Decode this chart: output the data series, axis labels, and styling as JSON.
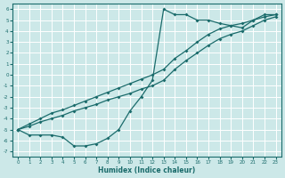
{
  "xlabel": "Humidex (Indice chaleur)",
  "bg_color": "#cce8e8",
  "grid_color": "#ffffff",
  "line_color": "#1a6b6b",
  "xlim": [
    -0.5,
    23.5
  ],
  "ylim": [
    -7.5,
    6.5
  ],
  "xticks": [
    0,
    1,
    2,
    3,
    4,
    5,
    6,
    7,
    8,
    9,
    10,
    11,
    12,
    13,
    14,
    15,
    16,
    17,
    18,
    19,
    20,
    21,
    22,
    23
  ],
  "yticks": [
    -7,
    -6,
    -5,
    -4,
    -3,
    -2,
    -1,
    0,
    1,
    2,
    3,
    4,
    5,
    6
  ],
  "line1_x": [
    0,
    1,
    2,
    3,
    4,
    5,
    6,
    7,
    8,
    9,
    10,
    11,
    12,
    13,
    14,
    15,
    16,
    17,
    18,
    19,
    20,
    21,
    22,
    23
  ],
  "line1_y": [
    -5.0,
    -5.5,
    -5.5,
    -5.5,
    -5.7,
    -6.5,
    -6.5,
    -6.3,
    -5.8,
    -5.0,
    -3.3,
    -2.0,
    -0.5,
    6.0,
    5.5,
    5.5,
    5.0,
    5.0,
    4.7,
    4.5,
    4.3,
    5.0,
    5.5,
    5.5
  ],
  "line2_x": [
    0,
    1,
    2,
    3,
    4,
    5,
    6,
    7,
    8,
    9,
    10,
    11,
    12,
    13,
    14,
    15,
    16,
    17,
    18,
    19,
    20,
    21,
    22,
    23
  ],
  "line2_y": [
    -5.0,
    -4.7,
    -4.3,
    -4.0,
    -3.7,
    -3.3,
    -3.0,
    -2.7,
    -2.3,
    -2.0,
    -1.7,
    -1.3,
    -1.0,
    -0.5,
    0.5,
    1.3,
    2.0,
    2.7,
    3.3,
    3.7,
    4.0,
    4.5,
    5.0,
    5.3
  ],
  "line3_x": [
    0,
    1,
    2,
    3,
    4,
    5,
    6,
    7,
    8,
    9,
    10,
    11,
    12,
    13,
    14,
    15,
    16,
    17,
    18,
    19,
    20,
    21,
    22,
    23
  ],
  "line3_y": [
    -5.0,
    -4.5,
    -4.0,
    -3.5,
    -3.2,
    -2.8,
    -2.4,
    -2.0,
    -1.6,
    -1.2,
    -0.8,
    -0.4,
    0.0,
    0.5,
    1.5,
    2.2,
    3.0,
    3.7,
    4.2,
    4.5,
    4.7,
    5.0,
    5.3,
    5.5
  ]
}
